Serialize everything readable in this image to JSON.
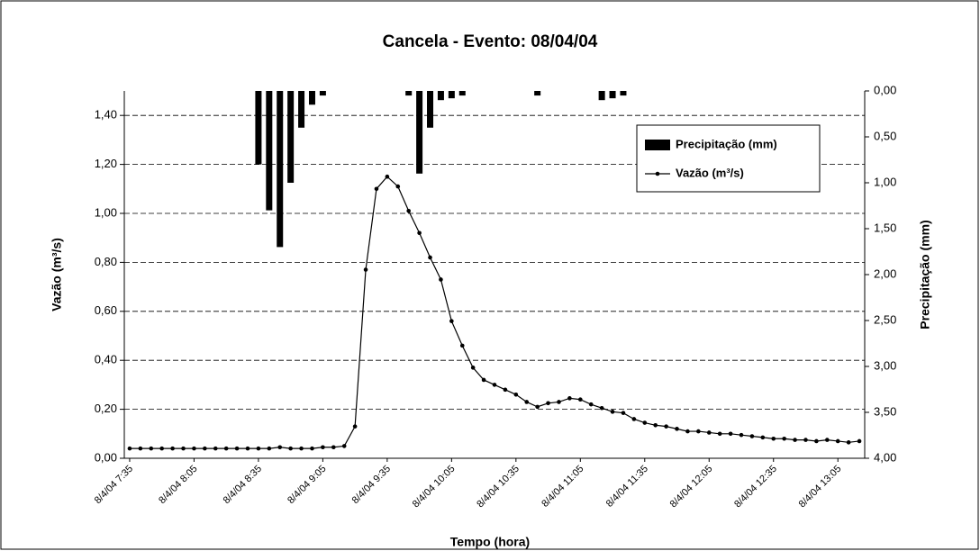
{
  "chart_data": {
    "type": "bar-line",
    "title": "Cancela - Evento: 08/04/04",
    "x_label": "Tempo (hora)",
    "y_label": "Vazão (m³/s)",
    "y2_label": "Precipitação (mm)",
    "categories": [
      "8/4/04 7:35",
      null,
      null,
      null,
      null,
      null,
      "8/4/04 8:05",
      null,
      null,
      null,
      null,
      null,
      "8/4/04 8:35",
      null,
      null,
      null,
      null,
      null,
      "8/4/04 9:05",
      null,
      null,
      null,
      null,
      null,
      "8/4/04 9:35",
      null,
      null,
      null,
      null,
      null,
      "8/4/04 10:05",
      null,
      null,
      null,
      null,
      null,
      "8/4/04 10:35",
      null,
      null,
      null,
      null,
      null,
      "8/4/04 11:05",
      null,
      null,
      null,
      null,
      null,
      "8/4/04 11:35",
      null,
      null,
      null,
      null,
      null,
      "8/4/04 12:05",
      null,
      null,
      null,
      null,
      null,
      "8/4/04 12:35",
      null,
      null,
      null,
      null,
      null,
      "8/4/04 13:05",
      null,
      null
    ],
    "series": [
      {
        "name": "Precipitação (mm)",
        "type": "bar",
        "axis": "y2",
        "color": "#000000",
        "values": [
          0,
          0,
          0,
          0,
          0,
          0,
          0,
          0,
          0,
          0,
          0,
          0,
          0.8,
          1.3,
          1.7,
          1.0,
          0.4,
          0.15,
          0.05,
          0,
          0,
          0,
          0,
          0,
          0,
          0,
          0.05,
          0.9,
          0.4,
          0.1,
          0.08,
          0.05,
          0,
          0,
          0,
          0,
          0,
          0,
          0.05,
          0,
          0,
          0,
          0,
          0,
          0.1,
          0.08,
          0.05,
          0,
          0,
          0,
          0,
          0,
          0,
          0,
          0,
          0,
          0,
          0,
          0,
          0,
          0,
          0,
          0,
          0,
          0,
          0,
          0,
          0,
          0
        ]
      },
      {
        "name": "Vazão (m³/s)",
        "type": "line",
        "color": "#000000",
        "values": [
          0.04,
          0.04,
          0.04,
          0.04,
          0.04,
          0.04,
          0.04,
          0.04,
          0.04,
          0.04,
          0.04,
          0.04,
          0.04,
          0.04,
          0.045,
          0.04,
          0.04,
          0.04,
          0.045,
          0.045,
          0.05,
          0.13,
          0.77,
          1.1,
          1.15,
          1.11,
          1.01,
          0.92,
          0.82,
          0.73,
          0.56,
          0.46,
          0.37,
          0.32,
          0.3,
          0.28,
          0.26,
          0.23,
          0.21,
          0.225,
          0.23,
          0.245,
          0.24,
          0.22,
          0.205,
          0.19,
          0.185,
          0.16,
          0.145,
          0.135,
          0.13,
          0.12,
          0.11,
          0.11,
          0.105,
          0.1,
          0.1,
          0.095,
          0.09,
          0.085,
          0.08,
          0.08,
          0.075,
          0.075,
          0.07,
          0.075,
          0.07,
          0.065,
          0.07
        ]
      }
    ],
    "ylim": [
      0,
      1.5
    ],
    "yticks": [
      {
        "value": 0,
        "label": "0,00"
      },
      {
        "value": 0.2,
        "label": "0,20"
      },
      {
        "value": 0.4,
        "label": "0,40"
      },
      {
        "value": 0.6,
        "label": "0,60"
      },
      {
        "value": 0.8,
        "label": "0,80"
      },
      {
        "value": 1.0,
        "label": "1,00"
      },
      {
        "value": 1.2,
        "label": "1,20"
      },
      {
        "value": 1.4,
        "label": "1,40"
      }
    ],
    "y2lim": [
      0,
      4
    ],
    "y2_reversed": true,
    "y2ticks": [
      {
        "value": 0,
        "label": "0,00"
      },
      {
        "value": 0.5,
        "label": "0,50"
      },
      {
        "value": 1.0,
        "label": "1,00"
      },
      {
        "value": 1.5,
        "label": "1,50"
      },
      {
        "value": 2.0,
        "label": "2,00"
      },
      {
        "value": 2.5,
        "label": "2,50"
      },
      {
        "value": 3.0,
        "label": "3,00"
      },
      {
        "value": 3.5,
        "label": "3,50"
      },
      {
        "value": 4.0,
        "label": "4,00"
      }
    ],
    "grid": true,
    "legend_position": "upper right"
  }
}
